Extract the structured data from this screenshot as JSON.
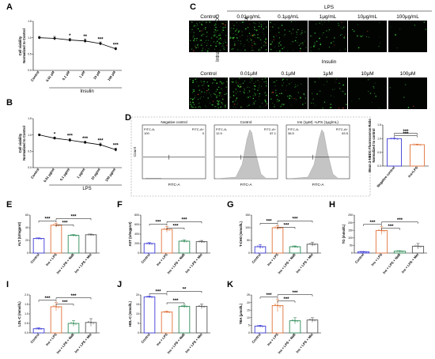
{
  "panel_labels": [
    "A",
    "B",
    "C",
    "D",
    "E",
    "F",
    "G",
    "H",
    "I",
    "J",
    "K"
  ],
  "chart_data": [
    {
      "panel": "A",
      "type": "line",
      "ylabel": "Cell viability\nNormalized to Control",
      "xlabel": "Insulin",
      "categories": [
        "Control",
        "0.01 μM",
        "0.1 μM",
        "1 μM",
        "10 μM",
        "100 μM"
      ],
      "values": [
        1.0,
        0.98,
        0.93,
        0.9,
        0.82,
        0.66
      ],
      "errors": [
        0.04,
        0.06,
        0.05,
        0.06,
        0.05,
        0.04
      ],
      "significance": [
        "",
        "",
        "*",
        "**",
        "***",
        "***"
      ],
      "yticks": [
        "0.0",
        "0.5",
        "1.0",
        "1.5"
      ],
      "ylim": [
        0,
        1.5
      ]
    },
    {
      "panel": "B",
      "type": "line",
      "ylabel": "Cell viability\nNormalized to Control",
      "xlabel": "LPS",
      "categories": [
        "Control",
        "0.01 μg/ml",
        "0.1 μg/ml",
        "1 μg/ml",
        "10 μg/ml",
        "100 μg/ml"
      ],
      "values": [
        1.0,
        0.9,
        0.84,
        0.77,
        0.7,
        0.55
      ],
      "errors": [
        0.03,
        0.04,
        0.05,
        0.04,
        0.05,
        0.05
      ],
      "significance": [
        "",
        "*",
        "***",
        "***",
        "***",
        "***"
      ],
      "yticks": [
        "0.0",
        "0.5",
        "1.0",
        "1.5"
      ],
      "ylim": [
        0,
        1.5
      ]
    },
    {
      "panel": "D-bar",
      "type": "bar",
      "ylabel": "Mean 2-NBDG Fluorescence Ratio\nNormalized to control",
      "categories": [
        "Negative control",
        "Ins+LPS"
      ],
      "values": [
        1.0,
        0.78
      ],
      "errors": [
        0.02,
        0.02
      ],
      "significance": [
        "***",
        "***"
      ],
      "yticks": [
        "0.0",
        "0.5",
        "1.0",
        "1.5"
      ],
      "ylim": [
        0,
        1.5
      ]
    },
    {
      "panel": "E",
      "type": "bar",
      "ylabel": "ALT (U/mgprot)",
      "categories": [
        "Control",
        "Ins + LPS",
        "Ins + LPS + NaB",
        "Ins + LPS + Met"
      ],
      "values": [
        23,
        44,
        28,
        29
      ],
      "errors": [
        1,
        3,
        1.2,
        1
      ],
      "ylim": [
        0,
        60
      ],
      "yticks": [
        "0",
        "20",
        "40",
        "60"
      ],
      "significance": [
        "***",
        "***",
        "***"
      ]
    },
    {
      "panel": "F",
      "type": "bar",
      "ylabel": "AST (U/mgprot)",
      "categories": [
        "Control",
        "Ins + LPS",
        "Ins + LPS + NaB",
        "Ins + LPS + Met"
      ],
      "values": [
        200,
        500,
        250,
        240
      ],
      "errors": [
        20,
        60,
        30,
        25
      ],
      "ylim": [
        0,
        800
      ],
      "yticks": [
        "0",
        "200",
        "400",
        "600",
        "800"
      ],
      "significance": [
        "***",
        "***",
        "***"
      ]
    },
    {
      "panel": "G",
      "type": "bar",
      "ylabel": "T-CHO (mmol/L)",
      "categories": [
        "Control",
        "Ins + LPS",
        "Ins + LPS + NaB",
        "Ins + LPS + Met"
      ],
      "values": [
        25,
        100,
        25,
        35
      ],
      "errors": [
        8,
        8,
        3,
        8
      ],
      "ylim": [
        0,
        150
      ],
      "yticks": [
        "0",
        "50",
        "100",
        "150"
      ],
      "significance": [
        "***",
        "***",
        "***"
      ]
    },
    {
      "panel": "H",
      "type": "bar",
      "ylabel": "TG (mmol/L)",
      "categories": [
        "Control",
        "Ins + LPS",
        "Ins + LPS + NaB",
        "Ins + LPS + Met"
      ],
      "values": [
        8,
        148,
        12,
        45
      ],
      "errors": [
        2,
        25,
        3,
        18
      ],
      "ylim": [
        0,
        250
      ],
      "yticks": [
        "0",
        "50",
        "100",
        "150",
        "200",
        "250"
      ],
      "significance": [
        "***",
        "***",
        "***"
      ]
    },
    {
      "panel": "I",
      "type": "bar",
      "ylabel": "LDL-C (mmol/L)",
      "categories": [
        "Control",
        "Ins + LPS",
        "Ins + LPS + NaB",
        "Ins + LPS + Met"
      ],
      "values": [
        0.22,
        1.38,
        0.5,
        0.55
      ],
      "errors": [
        0.05,
        0.22,
        0.15,
        0.2
      ],
      "ylim": [
        0,
        2.0
      ],
      "yticks": [
        "0.0",
        "0.5",
        "1.0",
        "1.5",
        "2.0"
      ],
      "significance": [
        "***",
        "***",
        "***"
      ]
    },
    {
      "panel": "J",
      "type": "bar",
      "ylabel": "HDL-C (mmol/L)",
      "categories": [
        "Control",
        "Ins + LPS",
        "Ins + LPS + NaB",
        "Ins + LPS + Met"
      ],
      "values": [
        19,
        11,
        14,
        14
      ],
      "errors": [
        0.4,
        0.5,
        0.6,
        1.2
      ],
      "ylim": [
        0,
        20
      ],
      "yticks": [
        "0",
        "5",
        "10",
        "15",
        "20"
      ],
      "significance": [
        "***",
        "**",
        "***"
      ]
    },
    {
      "panel": "K",
      "type": "bar",
      "ylabel": "TBA (μmol/L)",
      "categories": [
        "Control",
        "Ins + LPS",
        "Ins + LPS + NaB",
        "Ins + LPS + Met"
      ],
      "values": [
        4.5,
        18,
        8,
        8.5
      ],
      "errors": [
        0.5,
        4,
        2,
        1.5
      ],
      "ylim": [
        0,
        25
      ],
      "yticks": [
        "0",
        "5",
        "10",
        "15",
        "20",
        "25"
      ],
      "significance": [
        "***",
        "***",
        "***"
      ]
    }
  ],
  "microscopy": {
    "side_label_line1": "Intracellular 2-NBDG",
    "side_label_line2": "fluorescence",
    "row1_group_label": "LPS",
    "row1_labels": [
      "Control",
      "0.01μg/mL",
      "0.1μg/mL",
      "1μg/mL",
      "10μg/mL",
      "100μg/mL"
    ],
    "row1_intensity": [
      1.0,
      0.9,
      0.55,
      0.35,
      0.12,
      0.05
    ],
    "row2_group_label": "Insulin",
    "row2_labels": [
      "Control",
      "0.01μM",
      "0.1μM",
      "1μM",
      "10μM",
      "100μM"
    ],
    "row2_intensity": [
      1.0,
      0.8,
      0.45,
      0.25,
      0.1,
      0.04
    ]
  },
  "flow": {
    "xlabel": "FITC-A",
    "ylabel": "Count",
    "panels": [
      {
        "title": "Negative control",
        "left_label": "FITC-A-",
        "left_value": "100",
        "right_label": "FITC-A+",
        "right_value": "0",
        "peak": "none"
      },
      {
        "title": "Control",
        "left_label": "FITC-A-",
        "left_value": "12.9",
        "right_label": "FITC-A+",
        "right_value": "87.1",
        "peak": "right"
      },
      {
        "title": "Ins (1μM) +LPS (1μg/mL)",
        "left_label": "FITC-A-",
        "left_value": "36.5",
        "right_label": "FITC-A+",
        "right_value": "63.5",
        "peak": "right"
      }
    ]
  },
  "colors": {
    "control": "#3d3dd6",
    "ins_lps": "#e0723a",
    "nab": "#2e8b57",
    "met": "#555555",
    "micro_bg": "#020402",
    "micro_dot": "#3fcf3a",
    "micro_red": "#d94a2a"
  }
}
